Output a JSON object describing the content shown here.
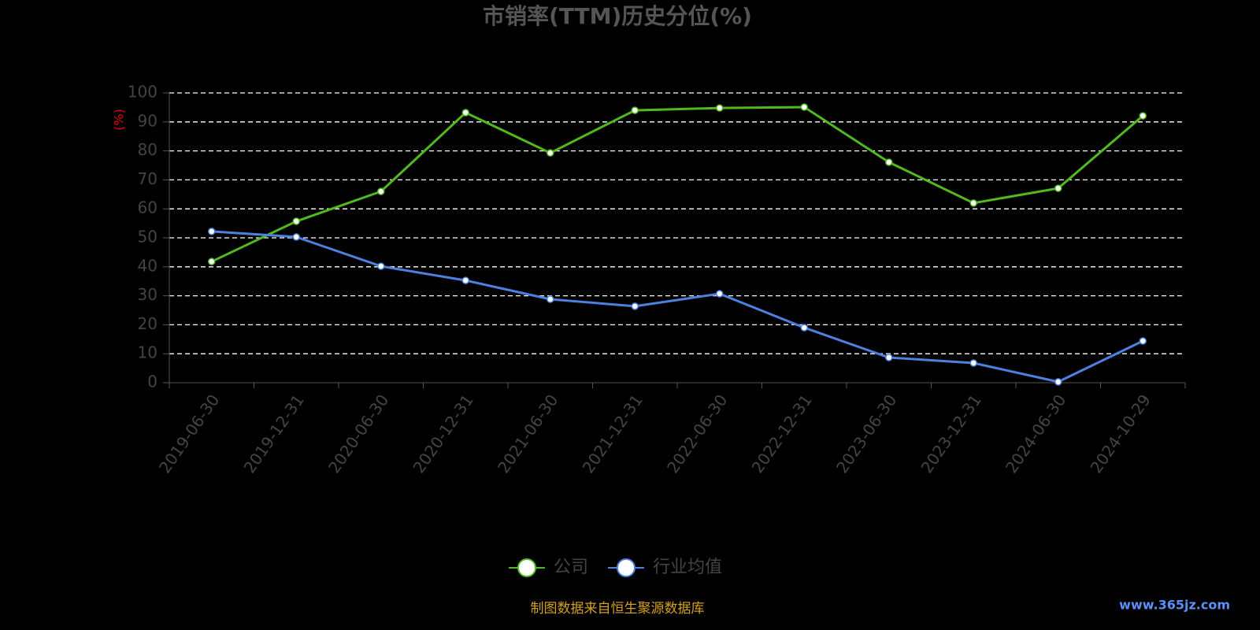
{
  "chart_data": {
    "type": "line",
    "title": "市销率(TTM)历史分位(%)",
    "y_label": "(%)",
    "categories": [
      "2019-06-30",
      "2019-12-31",
      "2020-06-30",
      "2020-12-31",
      "2021-06-30",
      "2021-12-31",
      "2022-06-30",
      "2022-12-31",
      "2023-06-30",
      "2023-12-31",
      "2024-06-30",
      "2024-10-29"
    ],
    "series": [
      {
        "name": "公司",
        "color": "#52b81f",
        "values": [
          41.8,
          55.7,
          66,
          93.2,
          79.3,
          94,
          94.8,
          95.1,
          76.1,
          62,
          67.1,
          92.1
        ]
      },
      {
        "name": "行业均值",
        "color": "#4e80e0",
        "values": [
          52.2,
          50.3,
          40.2,
          35.3,
          28.8,
          26.4,
          30.7,
          19,
          8.7,
          6.8,
          0.3,
          14.4
        ]
      }
    ],
    "ylim": [
      0,
      100
    ],
    "yticks": [
      0,
      10,
      20,
      30,
      40,
      50,
      60,
      70,
      80,
      90,
      100
    ],
    "grid": true,
    "legend": "bottom",
    "source": "制图数据来自恒生聚源数据库",
    "watermark": "www.365jz.com"
  }
}
